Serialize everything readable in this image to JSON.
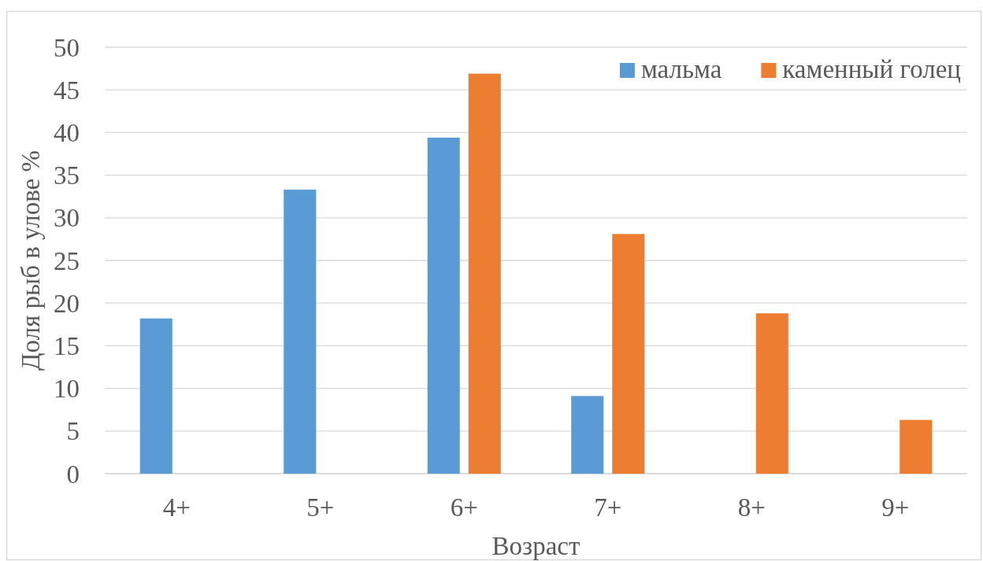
{
  "chart_data": {
    "type": "bar",
    "xlabel": "Возраст",
    "ylabel": "Доля рыб в улове %",
    "categories": [
      "4+",
      "5+",
      "6+",
      "7+",
      "8+",
      "9+"
    ],
    "series": [
      {
        "name": "мальма",
        "color": "#5b9bd5",
        "values": [
          18.2,
          33.3,
          39.4,
          9.1,
          null,
          null
        ]
      },
      {
        "name": "каменный голец",
        "color": "#ed7d31",
        "values": [
          null,
          null,
          46.9,
          28.1,
          18.8,
          6.3
        ]
      }
    ],
    "ylim": [
      0,
      50
    ],
    "yticks": [
      0,
      5,
      10,
      15,
      20,
      25,
      30,
      35,
      40,
      45,
      50
    ],
    "grid": "y",
    "legend": "top right"
  }
}
